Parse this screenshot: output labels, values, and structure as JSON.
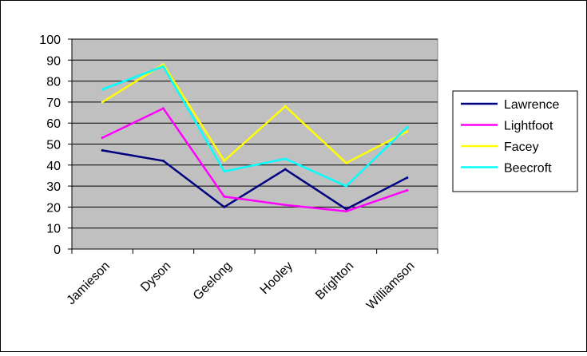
{
  "chart_data": {
    "type": "line",
    "title": "",
    "xlabel": "",
    "ylabel": "",
    "categories": [
      "Jamieson",
      "Dyson",
      "Geelong",
      "Hooley",
      "Brighton",
      "Williamson"
    ],
    "ylim": [
      0,
      100
    ],
    "yticks": [
      "0",
      "10",
      "20",
      "30",
      "40",
      "50",
      "60",
      "70",
      "80",
      "90",
      "100"
    ],
    "grid": true,
    "plot_background": "#c0c0c0",
    "legend_position": "right",
    "series": [
      {
        "name": "Lawrence",
        "color": "#000080",
        "values": [
          47,
          42,
          20,
          38,
          19,
          34
        ]
      },
      {
        "name": "Lightfoot",
        "color": "#ff00ff",
        "values": [
          53,
          67,
          25,
          21,
          18,
          28
        ]
      },
      {
        "name": "Facey",
        "color": "#ffff00",
        "values": [
          70,
          88,
          42,
          68,
          41,
          56
        ]
      },
      {
        "name": "Beecroft",
        "color": "#00ffff",
        "values": [
          76,
          87,
          37,
          43,
          30,
          58
        ]
      }
    ]
  }
}
